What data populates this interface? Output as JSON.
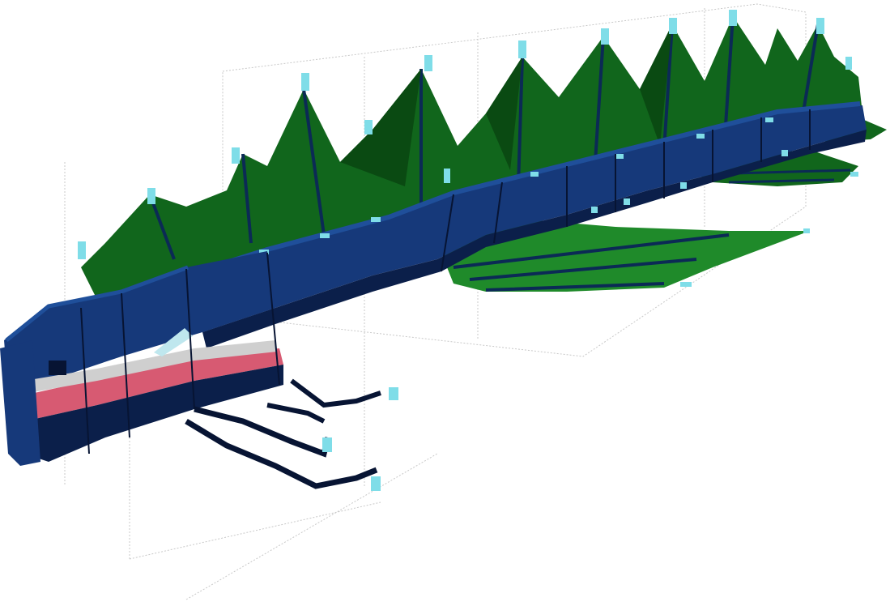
{
  "subject": {
    "name": "voxel-sea-serpent-model",
    "view": "3d-perspective",
    "background": "#ffffff"
  },
  "palette": {
    "scale_dark": "#0b1f4a",
    "scale_mid": "#16397a",
    "scale_light": "#1f4f9a",
    "scale_outline": "#071433",
    "fin_dark": "#0a4a12",
    "fin_mid": "#11661c",
    "fin_light": "#1f8a2a",
    "fin_edge": "#0b2a55",
    "glow": "#7fdde8",
    "glow_bright": "#a9f3ff",
    "mouth": "#d75a72",
    "teeth": "#cfcfcf",
    "eye": "#bfe7ee",
    "guide_lines": "#c8c8c8"
  }
}
